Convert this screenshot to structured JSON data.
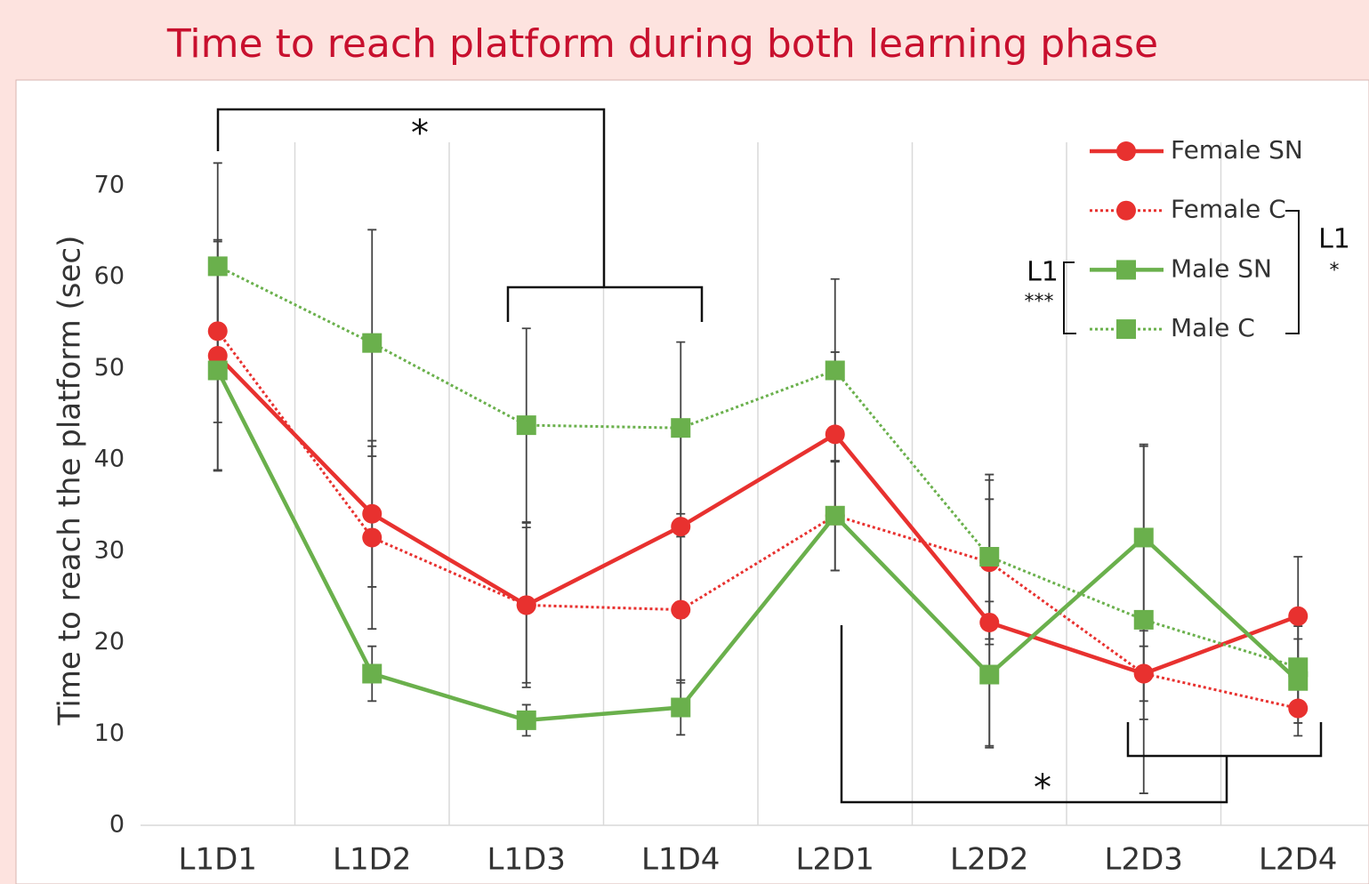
{
  "chart_data": {
    "type": "line",
    "title": "Time to reach platform during both learning phase",
    "y_label": "Time to reach the platform (sec)",
    "categories": [
      "L1D1",
      "L1D2",
      "L1D3",
      "L1D4",
      "L2D1",
      "L2D2",
      "L2D3",
      "L2D4"
    ],
    "ylim": [
      0,
      75
    ],
    "yticks": [
      0,
      10,
      20,
      30,
      40,
      50,
      60,
      70
    ],
    "grid": true,
    "legend": "upper right",
    "series": [
      {
        "name": "Female SN",
        "color": "#e8312f",
        "style": "solid",
        "marker": "circle",
        "values": [
          51.4,
          34.1,
          24.1,
          32.7,
          42.8,
          22.2,
          16.6,
          22.9
        ],
        "errors": [
          12.5,
          8,
          9,
          10,
          9,
          13.5,
          5,
          6.5
        ]
      },
      {
        "name": "Female C",
        "color": "#e8312f",
        "style": "dotted",
        "marker": "circle",
        "values": [
          54.1,
          31.5,
          24.1,
          23.6,
          33.9,
          28.8,
          16.6,
          12.8
        ],
        "errors": [
          10,
          10,
          8.5,
          8,
          6,
          9,
          3,
          3
        ]
      },
      {
        "name": "Male SN",
        "color": "#6ab04c",
        "style": "solid",
        "marker": "square",
        "values": [
          49.8,
          16.6,
          11.5,
          12.9,
          33.9,
          16.5,
          31.5,
          15.8
        ],
        "errors": [
          11,
          3,
          1.7,
          3,
          6,
          8,
          10.2,
          4.6
        ]
      },
      {
        "name": "Male C",
        "color": "#6ab04c",
        "style": "dotted",
        "marker": "square",
        "values": [
          61.2,
          52.8,
          43.8,
          43.5,
          49.8,
          29.4,
          22.5,
          17.3
        ],
        "errors": [
          11.3,
          12.4,
          10.6,
          9.4,
          10,
          9,
          19,
          4.5
        ]
      }
    ],
    "annotations": [
      "*",
      "*",
      "L1",
      "***",
      "L1",
      "*"
    ]
  }
}
